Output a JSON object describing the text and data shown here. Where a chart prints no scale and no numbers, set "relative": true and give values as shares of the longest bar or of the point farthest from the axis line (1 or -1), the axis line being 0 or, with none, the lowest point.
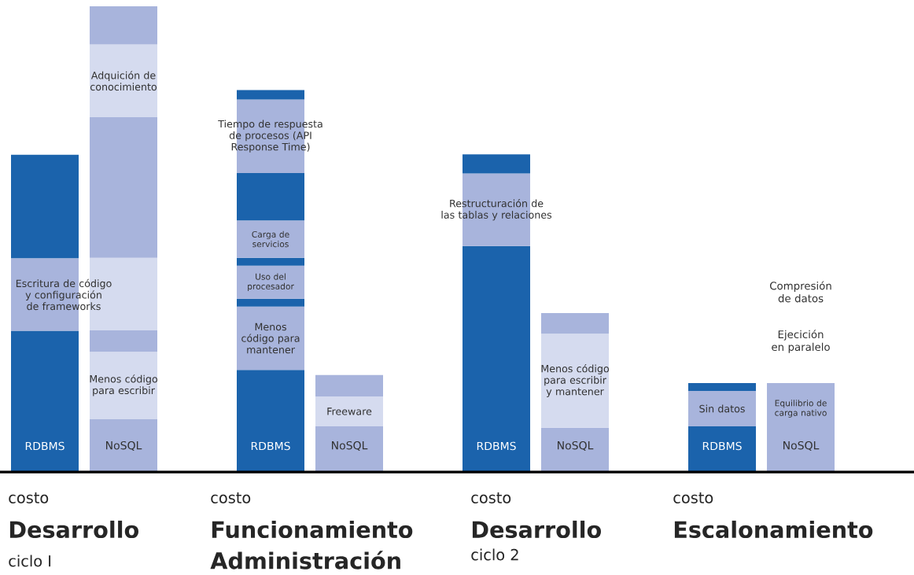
{
  "chart_data": {
    "type": "bar",
    "stacked": true,
    "relative": true,
    "categories": [
      "RDBMS",
      "NoSQL",
      "RDBMS",
      "NoSQL",
      "RDBMS",
      "NoSQL",
      "RDBMS",
      "NoSQL"
    ],
    "series": [
      {
        "values": [
          0.303,
          0.114,
          0.219,
          0.098,
          0.485,
          0.095,
          0.098,
          0.098
        ],
        "colors": [
          "#1b63ac",
          "#a8b4dc",
          "#1b63ac",
          "#a8b4dc",
          "#1b63ac",
          "#a8b4dc",
          "#1b63ac",
          "#a8b4dc"
        ]
      },
      {
        "values": [
          0.156,
          0.144,
          0.136,
          0.064,
          0.156,
          0.202,
          0.076,
          0.076
        ],
        "colors": [
          "#a8b4dc",
          "#d5dbef",
          "#a8b4dc",
          "#d5dbef",
          "#a8b4dc",
          "#d5dbef",
          "#a8b4dc",
          "#a8b4dc"
        ]
      },
      {
        "values": [
          0.222,
          0.046,
          0.017,
          0.046,
          0.041,
          0.044,
          0.017,
          0.017
        ],
        "colors": [
          "#1b63ac",
          "#a8b4dc",
          "#1b63ac",
          "#a8b4dc",
          "#1b63ac",
          "#a8b4dc",
          "#1b63ac",
          "#a8b4dc"
        ]
      },
      {
        "values": [
          null,
          0.156,
          0.071,
          null,
          null,
          null,
          null,
          null
        ],
        "colors": [
          null,
          "#d5dbef",
          "#a8b4dc",
          null,
          null,
          null,
          null,
          null
        ]
      },
      {
        "values": [
          null,
          0.302,
          0.017,
          null,
          null,
          null,
          null,
          null
        ],
        "colors": [
          null,
          "#a8b4dc",
          "#1b63ac",
          null,
          null,
          null,
          null,
          null
        ]
      },
      {
        "values": [
          null,
          0.156,
          0.08,
          null,
          null,
          null,
          null,
          null
        ],
        "colors": [
          null,
          "#d5dbef",
          "#a8b4dc",
          null,
          null,
          null,
          null,
          null
        ]
      },
      {
        "values": [
          null,
          0.082,
          0.102,
          null,
          null,
          null,
          null,
          null
        ],
        "colors": [
          null,
          "#a8b4dc",
          "#1b63ac",
          null,
          null,
          null,
          null,
          null
        ]
      },
      {
        "values": [
          null,
          null,
          0.158,
          null,
          null,
          null,
          null,
          null
        ],
        "colors": [
          null,
          null,
          "#a8b4dc",
          null,
          null,
          null,
          null,
          null
        ]
      },
      {
        "values": [
          null,
          null,
          0.02,
          null,
          null,
          null,
          null,
          null
        ],
        "colors": [
          null,
          null,
          "#1b63ac",
          null,
          null,
          null,
          null,
          null
        ]
      }
    ],
    "annotations": [
      "costo",
      "Desarrollo",
      "ciclo I",
      "costo",
      "Funcionamiento",
      "Administración",
      "costo",
      "Desarrollo",
      "ciclo 2",
      "costo",
      "Escalonamiento",
      "Compresión de datos",
      "Ejecición en paralelo",
      "Escritura de código y configuración de frameworks",
      "Menos código para escribir",
      "Menos código para mantener",
      "Freeware",
      "Restructuración de las tablas y relaciones",
      "Menos código para escribir y mantener",
      "Sin datos",
      "Equilibrio de carga nativo",
      "Uso del procesador",
      "Adquición de conocimiento",
      "Carga de servicios",
      "Tiempo de respuesta de procesos (API Response Time)"
    ]
  }
}
